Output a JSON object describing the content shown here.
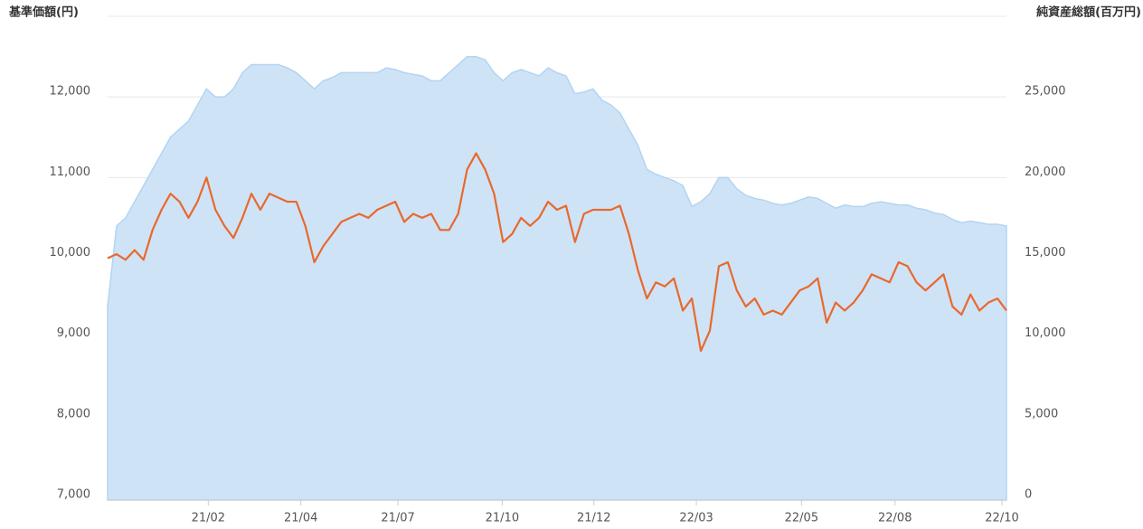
{
  "chart_data": {
    "type": "combo",
    "y_title": "基準価額(円)",
    "y2_title": "純資産総額(百万円)",
    "x": [
      0,
      1,
      2,
      3,
      4,
      5,
      6,
      7,
      8,
      9,
      10,
      11,
      12,
      13,
      14,
      15,
      16,
      17,
      18,
      19,
      20,
      21,
      22,
      23,
      24,
      25,
      26,
      27,
      28,
      29,
      30,
      31,
      32,
      33,
      34,
      35,
      36,
      37,
      38,
      39,
      40,
      41,
      42,
      43,
      44,
      45,
      46,
      47,
      48,
      49,
      50,
      51,
      52,
      53,
      54,
      55,
      56,
      57,
      58,
      59,
      60,
      61,
      62,
      63,
      64,
      65,
      66,
      67,
      68,
      69,
      70,
      71,
      72,
      73,
      74,
      75,
      76,
      77,
      78,
      79,
      80,
      81,
      82,
      83,
      84,
      85,
      86,
      87,
      88,
      89,
      90,
      91,
      92,
      93,
      94,
      95,
      96,
      97,
      98,
      99,
      100
    ],
    "xlim": [
      0,
      100
    ],
    "xticks": [
      {
        "value": 11.2,
        "label": "21/02"
      },
      {
        "value": 21.5,
        "label": "21/04"
      },
      {
        "value": 32.3,
        "label": "21/07"
      },
      {
        "value": 43.9,
        "label": "21/10"
      },
      {
        "value": 54.1,
        "label": "21/12"
      },
      {
        "value": 65.5,
        "label": "22/03"
      },
      {
        "value": 77.2,
        "label": "22/05"
      },
      {
        "value": 87.6,
        "label": "22/08"
      },
      {
        "value": 99.5,
        "label": "22/10"
      }
    ],
    "ylim": [
      7000,
      13000
    ],
    "yticks": [
      {
        "value": 7000,
        "label": "7,000"
      },
      {
        "value": 8000,
        "label": "8,000"
      },
      {
        "value": 9000,
        "label": "9,000"
      },
      {
        "value": 10000,
        "label": "10,000"
      },
      {
        "value": 11000,
        "label": "11,000"
      },
      {
        "value": 12000,
        "label": "12,000"
      }
    ],
    "y2lim": [
      0,
      30000
    ],
    "y2ticks": [
      0,
      {
        "value": 5000,
        "label": "5,000"
      },
      {
        "value": 10000,
        "label": "10,000"
      },
      {
        "value": 15000,
        "label": "15,000"
      },
      {
        "value": 20000,
        "label": "20,000"
      },
      {
        "value": 25000,
        "label": "25,000"
      }
    ],
    "grid": true,
    "series": [
      {
        "type": "area",
        "axis": "y2",
        "color": "#cfe3f7",
        "values": [
          12000,
          17000,
          17500,
          18500,
          19500,
          20500,
          21500,
          22500,
          23000,
          23500,
          24500,
          25500,
          25000,
          25000,
          25500,
          26500,
          27000,
          27000,
          27000,
          27000,
          26800,
          26500,
          26000,
          25500,
          26000,
          26200,
          26500,
          26500,
          26500,
          26500,
          26500,
          26800,
          26700,
          26500,
          26400,
          26300,
          26000,
          26000,
          26500,
          27000,
          27500,
          27500,
          27300,
          26500,
          26000,
          26500,
          26700,
          26500,
          26300,
          26800,
          26500,
          26300,
          25200,
          25300,
          25500,
          24800,
          24500,
          24000,
          23000,
          22000,
          20500,
          20200,
          20000,
          19800,
          19500,
          18200,
          18500,
          19000,
          20000,
          20000,
          19300,
          18900,
          18700,
          18600,
          18400,
          18300,
          18400,
          18600,
          18800,
          18700,
          18400,
          18100,
          18300,
          18200,
          18200,
          18400,
          18500,
          18400,
          18300,
          18300,
          18100,
          18000,
          17800,
          17700,
          17400,
          17200,
          17300,
          17200,
          17100,
          17100,
          17000
        ]
      },
      {
        "type": "line",
        "color": "#e8692d",
        "values": [
          10000,
          10050,
          9980,
          10100,
          9980,
          10350,
          10600,
          10800,
          10700,
          10500,
          10700,
          11000,
          10600,
          10400,
          10250,
          10500,
          10800,
          10600,
          10800,
          10750,
          10700,
          10700,
          10400,
          9950,
          10150,
          10300,
          10450,
          10500,
          10550,
          10500,
          10600,
          10650,
          10700,
          10450,
          10550,
          10500,
          10550,
          10350,
          10350,
          10550,
          11100,
          11300,
          11100,
          10800,
          10200,
          10300,
          10500,
          10400,
          10500,
          10700,
          10600,
          10650,
          10200,
          10550,
          10600,
          10600,
          10600,
          10650,
          10300,
          9850,
          9500,
          9700,
          9650,
          9750,
          9350,
          9500,
          8850,
          9100,
          9900,
          9950,
          9600,
          9400,
          9500,
          9300,
          9350,
          9300,
          9450,
          9600,
          9650,
          9750,
          9200,
          9450,
          9350,
          9450,
          9600,
          9800,
          9750,
          9700,
          9950,
          9900,
          9700,
          9600,
          9700,
          9800,
          9400,
          9300,
          9550,
          9350,
          9450,
          9500,
          9350
        ]
      }
    ]
  }
}
